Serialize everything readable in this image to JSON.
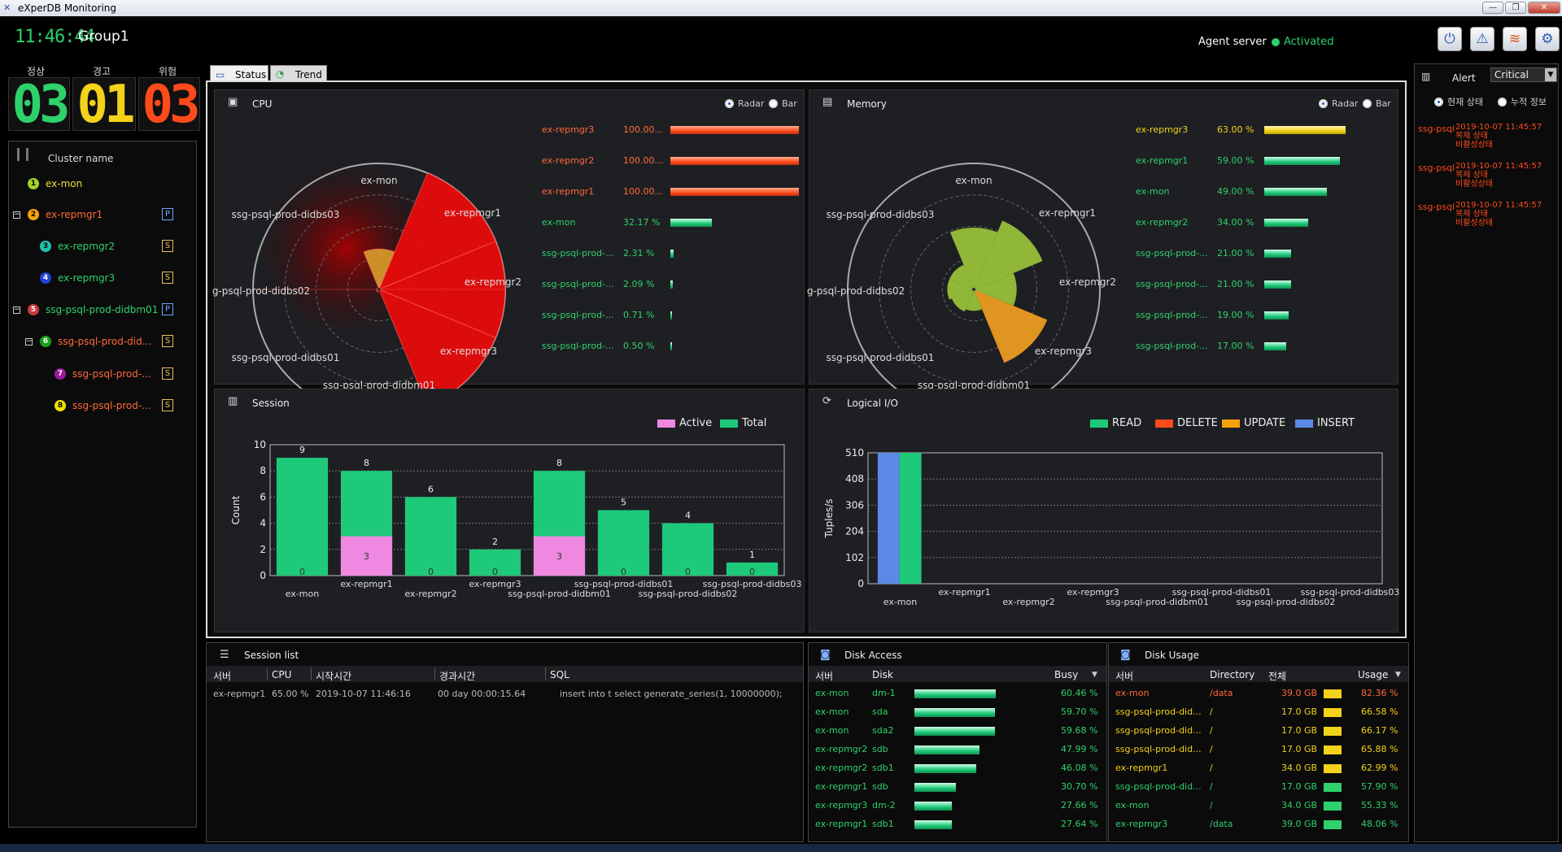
{
  "window": {
    "title": "eXperDB Monitoring",
    "min": "—",
    "restore": "❐",
    "close": "✕"
  },
  "header": {
    "clock": "11:46:44",
    "group": "Group1",
    "agent_label": "Agent server",
    "agent_status": "Activated",
    "agent_status_color": "#2ed16c"
  },
  "top_icons": [
    "power-icon",
    "warning-icon",
    "chart-icon",
    "settings-icon"
  ],
  "status_summary": {
    "labels": [
      "정상",
      "경고",
      "위험"
    ],
    "values": [
      "03",
      "01",
      "03"
    ],
    "colors": [
      "#2ed16c",
      "#f3d21a",
      "#ff4a1c"
    ]
  },
  "cluster_tree": {
    "title": "Cluster name",
    "nodes": [
      {
        "num": "1",
        "name": "ex-mon",
        "color": "#9fd12a",
        "num_bg": "#9fd12a",
        "name_color": "#e8e040",
        "toggle": "",
        "badge": ""
      },
      {
        "num": "2",
        "name": "ex-repmgr1",
        "color": "#f5a20a",
        "num_bg": "#f5a20a",
        "name_color": "#ff6a3a",
        "toggle": "−",
        "badge": "P"
      },
      {
        "num": "3",
        "name": "ex-repmgr2",
        "color": "#1fc0b0",
        "num_bg": "#1fc0b0",
        "name_color": "#2ed16c",
        "toggle": "",
        "badge": "S"
      },
      {
        "num": "4",
        "name": "ex-repmgr3",
        "color": "#2340d6",
        "num_bg": "#2340d6",
        "name_color": "#2ed16c",
        "toggle": "",
        "badge": "S"
      },
      {
        "num": "5",
        "name": "ssg-psql-prod-didbm01",
        "color": "#c83a3a",
        "num_bg": "#c83a3a",
        "name_color": "#2ed16c",
        "toggle": "−",
        "badge": "P"
      },
      {
        "num": "6",
        "name": "ssg-psql-prod-did...",
        "color": "#1a9e1a",
        "num_bg": "#1a9e1a",
        "name_color": "#ff6a3a",
        "toggle": "−",
        "badge": "S"
      },
      {
        "num": "7",
        "name": "ssg-psql-prod-...",
        "color": "#9a1a9a",
        "num_bg": "#9a1a9a",
        "name_color": "#ff6a3a",
        "toggle": "",
        "badge": "S"
      },
      {
        "num": "8",
        "name": "ssg-psql-prod-...",
        "color": "#f0e000",
        "num_bg": "#f0e000",
        "name_color": "#ff6a3a",
        "toggle": "",
        "badge": "S"
      }
    ]
  },
  "tabs": [
    {
      "label": "Status"
    },
    {
      "label": "Trend"
    }
  ],
  "cpu": {
    "title": "CPU",
    "radio_radar": "Radar",
    "radio_bar": "Bar",
    "radar_labels": [
      "ex-mon",
      "ex-repmgr1",
      "ex-repmgr2",
      "ex-repmgr3",
      "ssg-psql-prod-didbm01",
      "ssg-psql-prod-didbs01",
      "g-psql-prod-didbs02",
      "ssg-psql-prod-didbs03"
    ],
    "rows": [
      {
        "name": "ex-repmgr3",
        "value": "100.00...",
        "pct": 100,
        "color": "#ff6a3a"
      },
      {
        "name": "ex-repmgr2",
        "value": "100.00...",
        "pct": 100,
        "color": "#ff6a3a"
      },
      {
        "name": "ex-repmgr1",
        "value": "100.00...",
        "pct": 100,
        "color": "#ff6a3a"
      },
      {
        "name": "ex-mon",
        "value": "32.17 %",
        "pct": 32.17,
        "color": "#2ed16c"
      },
      {
        "name": "ssg-psql-prod-...",
        "value": "2.31 %",
        "pct": 2.31,
        "color": "#2ed16c"
      },
      {
        "name": "ssg-psql-prod-...",
        "value": "2.09 %",
        "pct": 2.09,
        "color": "#2ed16c"
      },
      {
        "name": "ssg-psql-prod-...",
        "value": "0.71 %",
        "pct": 0.71,
        "color": "#2ed16c"
      },
      {
        "name": "ssg-psql-prod-...",
        "value": "0.50 %",
        "pct": 0.5,
        "color": "#2ed16c"
      }
    ],
    "radar_values": [
      32.17,
      100,
      100,
      100,
      0.5,
      2.31,
      2.09,
      0.71
    ]
  },
  "memory": {
    "title": "Memory",
    "radio_radar": "Radar",
    "radio_bar": "Bar",
    "radar_labels": [
      "ex-mon",
      "ex-repmgr1",
      "ex-repmgr2",
      "ex-repmgr3",
      "ssg-psql-prod-didbm01",
      "ssg-psql-prod-didbs01",
      "g-psql-prod-didbs02",
      "ssg-psql-prod-didbs03"
    ],
    "rows": [
      {
        "name": "ex-repmgr3",
        "value": "63.00 %",
        "pct": 63,
        "color": "#f3d21a"
      },
      {
        "name": "ex-repmgr1",
        "value": "59.00 %",
        "pct": 59,
        "color": "#2ed16c"
      },
      {
        "name": "ex-mon",
        "value": "49.00 %",
        "pct": 49,
        "color": "#2ed16c"
      },
      {
        "name": "ex-repmgr2",
        "value": "34.00 %",
        "pct": 34,
        "color": "#2ed16c"
      },
      {
        "name": "ssg-psql-prod-...",
        "value": "21.00 %",
        "pct": 21,
        "color": "#2ed16c"
      },
      {
        "name": "ssg-psql-prod-...",
        "value": "21.00 %",
        "pct": 21,
        "color": "#2ed16c"
      },
      {
        "name": "ssg-psql-prod-...",
        "value": "19.00 %",
        "pct": 19,
        "color": "#2ed16c"
      },
      {
        "name": "ssg-psql-prod-...",
        "value": "17.00 %",
        "pct": 17,
        "color": "#2ed16c"
      }
    ],
    "radar_values": [
      49,
      59,
      34,
      63,
      17,
      19,
      21,
      21
    ]
  },
  "session": {
    "title": "Session",
    "legend_active": "Active",
    "legend_total": "Total",
    "ylabel": "Count"
  },
  "logical_io": {
    "title": "Logical I/O",
    "ylabel": "Tuples/s",
    "legend": [
      {
        "label": "READ",
        "color": "#1ec97a"
      },
      {
        "label": "DELETE",
        "color": "#ff4a1c"
      },
      {
        "label": "UPDATE",
        "color": "#f5a20a"
      },
      {
        "label": "INSERT",
        "color": "#5b8ae6"
      }
    ]
  },
  "chart_data": [
    {
      "type": "bar",
      "title": "Session",
      "ylabel": "Count",
      "ylim": [
        0,
        10
      ],
      "yticks": [
        0,
        2,
        4,
        6,
        8,
        10
      ],
      "categories": [
        "ex-mon",
        "ex-repmgr1",
        "ex-repmgr2",
        "ex-repmgr3",
        "ssg-psql-prod-didbm01",
        "ssg-psql-prod-didbs01",
        "ssg-psql-prod-didbs02",
        "ssg-psql-prod-didbs03"
      ],
      "series": [
        {
          "name": "Total",
          "values": [
            9,
            8,
            6,
            2,
            8,
            5,
            4,
            1
          ],
          "color": "#1ec97a"
        },
        {
          "name": "Active",
          "values": [
            0,
            3,
            0,
            0,
            3,
            0,
            0,
            0
          ],
          "color": "#ee88e0"
        }
      ]
    },
    {
      "type": "bar",
      "title": "Logical I/O",
      "ylabel": "Tuples/s",
      "ylim": [
        0,
        510
      ],
      "yticks": [
        0,
        102,
        204,
        306,
        408,
        510
      ],
      "categories": [
        "ex-mon",
        "ex-repmgr1",
        "ex-repmgr2",
        "ex-repmgr3",
        "ssg-psql-prod-didbm01",
        "ssg-psql-prod-didbs01",
        "ssg-psql-prod-didbs02",
        "ssg-psql-prod-didbs03"
      ],
      "series": [
        {
          "name": "INSERT",
          "values": [
            510,
            0,
            0,
            0,
            0,
            0,
            0,
            0
          ],
          "color": "#5b8ae6"
        },
        {
          "name": "READ",
          "values": [
            510,
            0,
            0,
            0,
            0,
            0,
            0,
            0
          ],
          "color": "#1ec97a"
        }
      ]
    }
  ],
  "alert": {
    "title": "Alert",
    "filter": "Critical",
    "radio_now": "현재 상태",
    "radio_acc": "누적 정보",
    "items": [
      {
        "src": "ssg-psql",
        "time": "2019-10-07 11:45:57",
        "l1": "복제 상태",
        "l2": "비활성상태"
      },
      {
        "src": "ssg-psql",
        "time": "2019-10-07 11:45:57",
        "l1": "복제 상태",
        "l2": "비활성상태"
      },
      {
        "src": "ssg-psql",
        "time": "2019-10-07 11:45:57",
        "l1": "복제 상태",
        "l2": "비활성상태"
      }
    ]
  },
  "session_list": {
    "title": "Session list",
    "headers": [
      "서버",
      "CPU",
      "시작시간",
      "경과시간",
      "SQL"
    ],
    "rows": [
      [
        "ex-repmgr1",
        "65.00 %",
        "2019-10-07 11:46:16",
        "00 day 00:00:15.64",
        "insert into t select generate_series(1, 10000000);"
      ]
    ]
  },
  "disk_access": {
    "title": "Disk Access",
    "headers": [
      "서버",
      "Disk",
      "Busy"
    ],
    "rows": [
      {
        "server": "ex-mon",
        "disk": "dm-1",
        "busy": "60.46 %",
        "pct": 60.46
      },
      {
        "server": "ex-mon",
        "disk": "sda",
        "busy": "59.70 %",
        "pct": 59.7
      },
      {
        "server": "ex-mon",
        "disk": "sda2",
        "busy": "59.68 %",
        "pct": 59.68
      },
      {
        "server": "ex-repmgr2",
        "disk": "sdb",
        "busy": "47.99 %",
        "pct": 47.99
      },
      {
        "server": "ex-repmgr2",
        "disk": "sdb1",
        "busy": "46.08 %",
        "pct": 46.08
      },
      {
        "server": "ex-repmgr1",
        "disk": "sdb",
        "busy": "30.70 %",
        "pct": 30.7
      },
      {
        "server": "ex-repmgr3",
        "disk": "dm-2",
        "busy": "27.66 %",
        "pct": 27.66
      },
      {
        "server": "ex-repmgr1",
        "disk": "sdb1",
        "busy": "27.64 %",
        "pct": 27.64
      }
    ]
  },
  "disk_usage": {
    "title": "Disk Usage",
    "headers": [
      "서버",
      "Directory",
      "전체",
      "Usage"
    ],
    "rows": [
      {
        "server": "ex-mon",
        "dir": "/data",
        "total": "39.0 GB",
        "usage": "82.36 %",
        "color": "#ff6a3a"
      },
      {
        "server": "ssg-psql-prod-did...",
        "dir": "/",
        "total": "17.0 GB",
        "usage": "66.58 %",
        "color": "#f3d21a"
      },
      {
        "server": "ssg-psql-prod-did...",
        "dir": "/",
        "total": "17.0 GB",
        "usage": "66.17 %",
        "color": "#f3d21a"
      },
      {
        "server": "ssg-psql-prod-did...",
        "dir": "/",
        "total": "17.0 GB",
        "usage": "65.88 %",
        "color": "#f3d21a"
      },
      {
        "server": "ex-repmgr1",
        "dir": "/",
        "total": "34.0 GB",
        "usage": "62.99 %",
        "color": "#f3d21a"
      },
      {
        "server": "ssg-psql-prod-did...",
        "dir": "/",
        "total": "17.0 GB",
        "usage": "57.90 %",
        "color": "#2ed16c"
      },
      {
        "server": "ex-mon",
        "dir": "/",
        "total": "34.0 GB",
        "usage": "55.33 %",
        "color": "#2ed16c"
      },
      {
        "server": "ex-repmgr3",
        "dir": "/data",
        "total": "39.0 GB",
        "usage": "48.06 %",
        "color": "#2ed16c"
      }
    ]
  }
}
